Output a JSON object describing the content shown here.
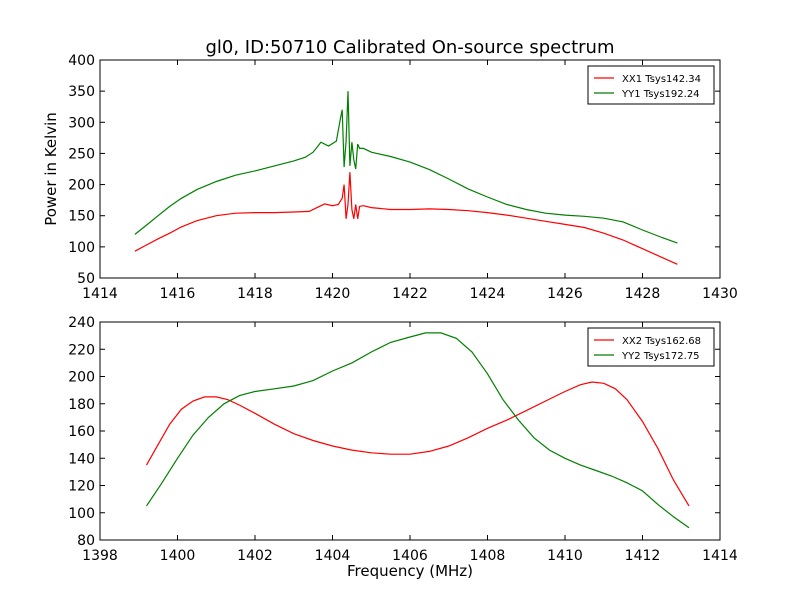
{
  "title": "gl0, ID:50710 Calibrated On-source spectrum",
  "chart_data": [
    {
      "type": "line",
      "title": "gl0, ID:50710 Calibrated On-source spectrum",
      "xlabel": "",
      "ylabel": "Power in Kelvin",
      "xlim": [
        1414,
        1430
      ],
      "ylim": [
        50,
        400
      ],
      "xticks": [
        "1414",
        "1416",
        "1418",
        "1420",
        "1422",
        "1424",
        "1426",
        "1428",
        "1430"
      ],
      "yticks": [
        "50",
        "100",
        "150",
        "200",
        "250",
        "300",
        "350",
        "400"
      ],
      "grid": false,
      "legend_position": "top-right",
      "series": [
        {
          "name": "XX1 Tsys142.34",
          "color": "#ff0000",
          "x": [
            1414.9,
            1415.2,
            1415.5,
            1415.8,
            1416.1,
            1416.5,
            1417.0,
            1417.5,
            1418.0,
            1418.5,
            1419.0,
            1419.4,
            1419.6,
            1419.8,
            1420.0,
            1420.15,
            1420.25,
            1420.3,
            1420.35,
            1420.4,
            1420.45,
            1420.5,
            1420.55,
            1420.6,
            1420.65,
            1420.7,
            1420.8,
            1421.0,
            1421.5,
            1422.0,
            1422.5,
            1423.0,
            1423.5,
            1424.0,
            1424.5,
            1425.0,
            1425.5,
            1426.0,
            1426.5,
            1427.0,
            1427.5,
            1428.0,
            1428.5,
            1428.9
          ],
          "values": [
            93,
            103,
            113,
            122,
            132,
            142,
            150,
            154,
            155,
            155,
            156,
            157,
            163,
            169,
            166,
            168,
            178,
            200,
            145,
            168,
            220,
            160,
            145,
            168,
            145,
            165,
            166,
            163,
            160,
            160,
            161,
            160,
            158,
            155,
            151,
            146,
            141,
            136,
            131,
            122,
            111,
            97,
            83,
            72
          ]
        },
        {
          "name": "YY1 Tsys192.24",
          "color": "#008000",
          "x": [
            1414.9,
            1415.2,
            1415.5,
            1415.8,
            1416.1,
            1416.5,
            1417.0,
            1417.5,
            1418.0,
            1418.5,
            1419.0,
            1419.3,
            1419.5,
            1419.7,
            1419.9,
            1420.1,
            1420.2,
            1420.25,
            1420.3,
            1420.35,
            1420.4,
            1420.45,
            1420.5,
            1420.55,
            1420.6,
            1420.65,
            1420.7,
            1420.8,
            1421.0,
            1421.5,
            1422.0,
            1422.5,
            1423.0,
            1423.5,
            1424.0,
            1424.5,
            1425.0,
            1425.5,
            1426.0,
            1426.5,
            1427.0,
            1427.5,
            1428.0,
            1428.5,
            1428.9
          ],
          "values": [
            120,
            135,
            150,
            165,
            178,
            192,
            205,
            215,
            222,
            230,
            238,
            244,
            252,
            268,
            262,
            270,
            305,
            320,
            228,
            270,
            350,
            230,
            268,
            240,
            225,
            265,
            258,
            258,
            252,
            245,
            236,
            224,
            209,
            193,
            180,
            168,
            160,
            154,
            151,
            149,
            146,
            140,
            127,
            115,
            106
          ]
        }
      ]
    },
    {
      "type": "line",
      "title": "",
      "xlabel": "Frequency (MHz)",
      "ylabel": "",
      "xlim": [
        1398,
        1414
      ],
      "ylim": [
        80,
        240
      ],
      "xticks": [
        "1398",
        "1400",
        "1402",
        "1404",
        "1406",
        "1408",
        "1410",
        "1412",
        "1414"
      ],
      "yticks": [
        "80",
        "100",
        "120",
        "140",
        "160",
        "180",
        "200",
        "220",
        "240"
      ],
      "grid": false,
      "legend_position": "top-right",
      "series": [
        {
          "name": "XX2 Tsys162.68",
          "color": "#ff0000",
          "x": [
            1399.2,
            1399.5,
            1399.8,
            1400.1,
            1400.4,
            1400.7,
            1401.0,
            1401.3,
            1401.6,
            1402.0,
            1402.5,
            1403.0,
            1403.5,
            1404.0,
            1404.5,
            1405.0,
            1405.5,
            1406.0,
            1406.5,
            1407.0,
            1407.5,
            1408.0,
            1408.5,
            1409.0,
            1409.5,
            1410.0,
            1410.4,
            1410.7,
            1411.0,
            1411.3,
            1411.6,
            1412.0,
            1412.4,
            1412.8,
            1413.2
          ],
          "values": [
            135,
            150,
            165,
            176,
            182,
            185,
            185,
            183,
            179,
            173,
            165,
            158,
            153,
            149,
            146,
            144,
            143,
            143,
            145,
            149,
            155,
            162,
            168,
            175,
            182,
            189,
            194,
            196,
            195,
            191,
            183,
            167,
            147,
            124,
            105
          ]
        },
        {
          "name": "YY2 Tsys172.75",
          "color": "#008000",
          "x": [
            1399.2,
            1399.6,
            1400.0,
            1400.4,
            1400.8,
            1401.2,
            1401.6,
            1402.0,
            1402.5,
            1403.0,
            1403.5,
            1404.0,
            1404.5,
            1405.0,
            1405.5,
            1406.0,
            1406.4,
            1406.8,
            1407.2,
            1407.6,
            1408.0,
            1408.4,
            1408.8,
            1409.2,
            1409.6,
            1410.0,
            1410.4,
            1410.8,
            1411.2,
            1411.6,
            1412.0,
            1412.4,
            1412.8,
            1413.2
          ],
          "values": [
            105,
            122,
            140,
            157,
            170,
            180,
            186,
            189,
            191,
            193,
            197,
            204,
            210,
            218,
            225,
            229,
            232,
            232,
            228,
            218,
            202,
            183,
            168,
            155,
            146,
            140,
            135,
            131,
            127,
            122,
            116,
            106,
            97,
            89
          ]
        }
      ]
    }
  ]
}
